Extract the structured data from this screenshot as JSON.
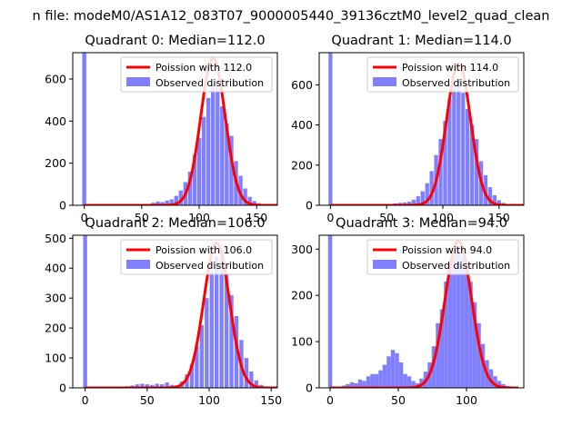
{
  "figure_title": "n file: modeM0/AS1A12_083T07_9000005440_39136cztM0_level2_quad_clean",
  "colors": {
    "histogram": "#8080ff",
    "poisson": "#ff0000",
    "axes": "#000000",
    "legend_border": "#cccccc"
  },
  "chart_data": [
    {
      "type": "bar",
      "title": "Quadrant 0: Median=112.0",
      "median": 112.0,
      "xlim": [
        -10,
        168
      ],
      "ylim": [
        0,
        725
      ],
      "xticks": [
        0,
        50,
        100,
        150
      ],
      "yticks": [
        0,
        200,
        400,
        600
      ],
      "bin_width": 3.5,
      "legend": {
        "placement": "upper-right",
        "poisson_label": "Poission with 112.0",
        "observed_label": "Observed distribution"
      },
      "observed": {
        "name": "Observed distribution",
        "x": [
          0,
          56,
          60,
          64,
          68,
          72,
          76,
          80,
          84,
          88,
          92,
          96,
          100,
          104,
          108,
          112,
          116,
          120,
          124,
          128,
          132,
          136,
          140,
          144,
          148,
          152,
          156,
          160
        ],
        "values": [
          725,
          3,
          12,
          18,
          15,
          22,
          28,
          45,
          70,
          110,
          160,
          240,
          320,
          420,
          510,
          580,
          560,
          470,
          390,
          330,
          210,
          140,
          80,
          40,
          20,
          10,
          5,
          2
        ]
      },
      "poisson": {
        "name": "Poission with 112.0",
        "x_range": [
          0,
          168
        ],
        "peak": 700
      }
    },
    {
      "type": "bar",
      "title": "Quadrant 1: Median=114.0",
      "median": 114.0,
      "xlim": [
        -10,
        172
      ],
      "ylim": [
        0,
        760
      ],
      "xticks": [
        0,
        50,
        100,
        150
      ],
      "yticks": [
        0,
        200,
        400,
        600
      ],
      "bin_width": 3.5,
      "legend": {
        "placement": "upper-right",
        "poisson_label": "Poission with 114.0",
        "observed_label": "Observed distribution"
      },
      "observed": {
        "name": "Observed distribution",
        "x": [
          0,
          48,
          54,
          58,
          62,
          66,
          70,
          74,
          78,
          82,
          86,
          90,
          94,
          98,
          102,
          106,
          110,
          114,
          118,
          122,
          126,
          130,
          134,
          138,
          142,
          146,
          150,
          154,
          158,
          162
        ],
        "values": [
          760,
          2,
          6,
          10,
          12,
          14,
          18,
          28,
          45,
          70,
          110,
          170,
          250,
          330,
          420,
          530,
          600,
          630,
          560,
          480,
          400,
          330,
          220,
          150,
          90,
          50,
          25,
          12,
          6,
          2
        ]
      },
      "poisson": {
        "name": "Poission with 114.0",
        "x_range": [
          0,
          172
        ],
        "peak": 705
      }
    },
    {
      "type": "bar",
      "title": "Quadrant 2: Median=106.0",
      "median": 106.0,
      "xlim": [
        -10,
        155
      ],
      "ylim": [
        0,
        510
      ],
      "xticks": [
        0,
        50,
        100,
        150
      ],
      "yticks": [
        0,
        100,
        200,
        300,
        400,
        500
      ],
      "bin_width": 3.2,
      "legend": {
        "placement": "upper-right",
        "poisson_label": "Poission with 106.0",
        "observed_label": "Observed distribution"
      },
      "observed": {
        "name": "Observed distribution",
        "x": [
          0,
          30,
          34,
          38,
          42,
          46,
          50,
          54,
          58,
          62,
          66,
          70,
          74,
          78,
          82,
          86,
          90,
          94,
          98,
          102,
          106,
          110,
          114,
          118,
          122,
          126,
          130,
          134,
          138,
          142,
          146
        ],
        "values": [
          510,
          3,
          5,
          8,
          12,
          14,
          12,
          10,
          14,
          12,
          18,
          10,
          8,
          22,
          45,
          80,
          140,
          210,
          300,
          390,
          440,
          430,
          380,
          310,
          240,
          160,
          100,
          55,
          25,
          10,
          4
        ]
      },
      "poisson": {
        "name": "Poission with 106.0",
        "x_range": [
          0,
          155
        ],
        "peak": 485
      }
    },
    {
      "type": "bar",
      "title": "Quadrant 3: Median=94.0",
      "median": 94.0,
      "xlim": [
        -8,
        142
      ],
      "ylim": [
        0,
        330
      ],
      "xticks": [
        0,
        50,
        100
      ],
      "yticks": [
        0,
        100,
        200,
        300
      ],
      "bin_width": 3.0,
      "legend": {
        "placement": "upper-right",
        "poisson_label": "Poission with 94.0",
        "observed_label": "Observed distribution"
      },
      "observed": {
        "name": "Observed distribution",
        "x": [
          0,
          10,
          13,
          16,
          19,
          22,
          25,
          28,
          31,
          34,
          37,
          40,
          43,
          46,
          49,
          52,
          55,
          58,
          61,
          64,
          67,
          70,
          73,
          76,
          79,
          82,
          85,
          88,
          91,
          94,
          97,
          100,
          103,
          106,
          109,
          112,
          115,
          118,
          121,
          124,
          127,
          130,
          133
        ],
        "values": [
          330,
          5,
          8,
          12,
          10,
          18,
          15,
          25,
          30,
          30,
          38,
          50,
          68,
          82,
          75,
          55,
          30,
          25,
          15,
          10,
          20,
          35,
          55,
          90,
          140,
          170,
          230,
          265,
          290,
          300,
          285,
          255,
          230,
          185,
          140,
          95,
          60,
          40,
          25,
          15,
          8,
          4,
          2
        ]
      },
      "poisson": {
        "name": "Poission with 94.0",
        "x_range": [
          0,
          138
        ],
        "peak": 318
      }
    }
  ]
}
